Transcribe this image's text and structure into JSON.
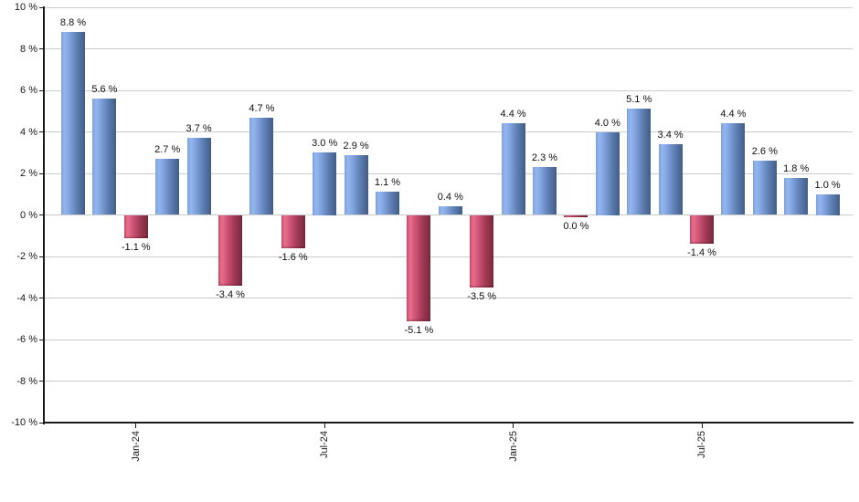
{
  "chart_data": {
    "type": "bar",
    "title": "",
    "xlabel": "",
    "ylabel": "",
    "unit": "%",
    "ylim": [
      -10,
      10
    ],
    "y_tick_step": 2,
    "grid": "horizontal",
    "legend": "none",
    "background_color": "#ffffff",
    "gridline_color": "#cccccc",
    "axis_color": "#1a1a1a",
    "positive_color": "#7fa3de",
    "negative_color": "#c94e6b",
    "y_tick_labels": [
      "10 %",
      "8 %",
      "6 %",
      "4 %",
      "2 %",
      "0 %",
      "-2 %",
      "-4 %",
      "-6 %",
      "-8 %",
      "-10 %"
    ],
    "x_ticks": [
      {
        "label": "Jan-24",
        "bar_index": 2
      },
      {
        "label": "Jul-24",
        "bar_index": 8
      },
      {
        "label": "Jan-25",
        "bar_index": 14
      },
      {
        "label": "Jul-25",
        "bar_index": 20
      }
    ],
    "bars": [
      {
        "value": 8.8,
        "label": "8.8 %",
        "color": "blue"
      },
      {
        "value": 5.6,
        "label": "5.6 %",
        "color": "blue"
      },
      {
        "value": -1.1,
        "label": "-1.1 %",
        "color": "red"
      },
      {
        "value": 2.7,
        "label": "2.7 %",
        "color": "blue"
      },
      {
        "value": 3.7,
        "label": "3.7 %",
        "color": "blue"
      },
      {
        "value": -3.4,
        "label": "-3.4 %",
        "color": "red"
      },
      {
        "value": 4.7,
        "label": "4.7 %",
        "color": "blue"
      },
      {
        "value": -1.6,
        "label": "-1.6 %",
        "color": "red"
      },
      {
        "value": 3.0,
        "label": "3.0 %",
        "color": "blue"
      },
      {
        "value": 2.9,
        "label": "2.9 %",
        "color": "blue"
      },
      {
        "value": 1.1,
        "label": "1.1 %",
        "color": "blue"
      },
      {
        "value": -5.1,
        "label": "-5.1 %",
        "color": "red"
      },
      {
        "value": 0.4,
        "label": "0.4 %",
        "color": "blue"
      },
      {
        "value": -3.5,
        "label": "-3.5 %",
        "color": "red"
      },
      {
        "value": 4.4,
        "label": "4.4 %",
        "color": "blue"
      },
      {
        "value": 2.3,
        "label": "2.3 %",
        "color": "blue"
      },
      {
        "value": 0.0,
        "label": "0.0 %",
        "color": "red"
      },
      {
        "value": 4.0,
        "label": "4.0 %",
        "color": "blue"
      },
      {
        "value": 5.1,
        "label": "5.1 %",
        "color": "blue"
      },
      {
        "value": 3.4,
        "label": "3.4 %",
        "color": "blue"
      },
      {
        "value": -1.4,
        "label": "-1.4 %",
        "color": "red"
      },
      {
        "value": 4.4,
        "label": "4.4 %",
        "color": "blue"
      },
      {
        "value": 2.6,
        "label": "2.6 %",
        "color": "blue"
      },
      {
        "value": 1.8,
        "label": "1.8 %",
        "color": "blue"
      },
      {
        "value": 1.0,
        "label": "1.0 %",
        "color": "blue"
      }
    ]
  }
}
